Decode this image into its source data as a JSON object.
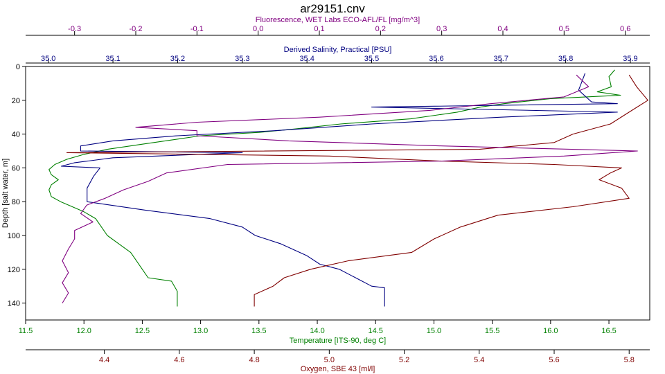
{
  "chart_data": {
    "type": "line",
    "title": "ar29151.cnv",
    "y_axis": {
      "label": "Depth [salt water, m]",
      "range": [
        0,
        150
      ],
      "ticks": [
        0,
        20,
        40,
        60,
        80,
        100,
        120,
        140
      ],
      "inverted": true
    },
    "x_axes": [
      {
        "id": "fluorescence",
        "label": "Fluorescence, WET Labs ECO-AFL/FL [mg/m^3]",
        "position": "top-outer",
        "color": "#800080",
        "range": [
          -0.38,
          0.64
        ],
        "ticks": [
          -0.3,
          -0.2,
          -0.1,
          0.0,
          0.1,
          0.2,
          0.3,
          0.4,
          0.5,
          0.6
        ],
        "tick_labels": [
          "-0.3",
          "-0.2",
          "-0.1",
          "0.0",
          "0.1",
          "0.2",
          "0.3",
          "0.4",
          "0.5",
          "0.6"
        ]
      },
      {
        "id": "salinity",
        "label": "Derived Salinity, Practical [PSU]",
        "position": "top-inner",
        "color": "#000080",
        "range": [
          34.965,
          35.93
        ],
        "ticks": [
          35.0,
          35.1,
          35.2,
          35.3,
          35.4,
          35.5,
          35.6,
          35.7,
          35.8,
          35.9
        ],
        "tick_labels": [
          "35.0",
          "35.1",
          "35.2",
          "35.3",
          "35.4",
          "35.5",
          "35.6",
          "35.7",
          "35.8",
          "35.9"
        ]
      },
      {
        "id": "temperature",
        "label": "Temperature [ITS-90, deg C]",
        "position": "bottom-inner",
        "color": "#008000",
        "range": [
          11.5,
          16.85
        ],
        "ticks": [
          11.5,
          12.0,
          12.5,
          13.0,
          13.5,
          14.0,
          14.5,
          15.0,
          15.5,
          16.0,
          16.5
        ],
        "tick_labels": [
          "11.5",
          "12.0",
          "12.5",
          "13.0",
          "13.5",
          "14.0",
          "14.5",
          "15.0",
          "15.5",
          "16.0",
          "16.5"
        ]
      },
      {
        "id": "oxygen",
        "label": "Oxygen, SBE 43 [ml/l]",
        "position": "bottom-outer",
        "color": "#800000",
        "range": [
          4.19,
          5.855
        ],
        "ticks": [
          4.4,
          4.6,
          4.8,
          5.0,
          5.2,
          5.4,
          5.6,
          5.8
        ],
        "tick_labels": [
          "4.4",
          "4.6",
          "4.8",
          "5.0",
          "5.2",
          "5.4",
          "5.6",
          "5.8"
        ]
      }
    ],
    "series": [
      {
        "axis": "temperature",
        "color": "#008000",
        "points": [
          [
            16.55,
            2
          ],
          [
            16.5,
            6
          ],
          [
            16.52,
            12
          ],
          [
            16.4,
            15
          ],
          [
            16.6,
            17
          ],
          [
            16.0,
            19
          ],
          [
            15.6,
            22
          ],
          [
            15.4,
            24
          ],
          [
            15.2,
            27
          ],
          [
            14.8,
            31
          ],
          [
            14.2,
            34
          ],
          [
            13.8,
            37
          ],
          [
            13.5,
            39
          ],
          [
            13.0,
            41
          ],
          [
            12.8,
            43
          ],
          [
            12.5,
            46
          ],
          [
            12.2,
            49
          ],
          [
            12.0,
            52
          ],
          [
            11.85,
            55
          ],
          [
            11.75,
            58
          ],
          [
            11.7,
            61
          ],
          [
            11.72,
            64
          ],
          [
            11.78,
            67
          ],
          [
            11.72,
            70
          ],
          [
            11.7,
            73
          ],
          [
            11.72,
            77
          ],
          [
            11.8,
            80
          ],
          [
            11.9,
            83
          ],
          [
            12.0,
            86
          ],
          [
            12.1,
            90
          ],
          [
            12.15,
            95
          ],
          [
            12.2,
            100
          ],
          [
            12.3,
            105
          ],
          [
            12.4,
            110
          ],
          [
            12.45,
            115
          ],
          [
            12.5,
            120
          ],
          [
            12.55,
            125
          ],
          [
            12.75,
            127
          ],
          [
            12.8,
            133
          ],
          [
            12.8,
            142
          ]
        ]
      },
      {
        "axis": "salinity",
        "color": "#000080",
        "points": [
          [
            35.83,
            4
          ],
          [
            35.82,
            14
          ],
          [
            35.84,
            21
          ],
          [
            35.88,
            22
          ],
          [
            35.5,
            24
          ],
          [
            35.88,
            27
          ],
          [
            35.7,
            30
          ],
          [
            35.5,
            34
          ],
          [
            35.35,
            38
          ],
          [
            35.2,
            41
          ],
          [
            35.1,
            44
          ],
          [
            35.05,
            47
          ],
          [
            35.05,
            50
          ],
          [
            35.3,
            51
          ],
          [
            35.1,
            54
          ],
          [
            35.04,
            57
          ],
          [
            35.02,
            59
          ],
          [
            35.08,
            60
          ],
          [
            35.07,
            65
          ],
          [
            35.06,
            72
          ],
          [
            35.06,
            80
          ],
          [
            35.15,
            85
          ],
          [
            35.25,
            90
          ],
          [
            35.3,
            95
          ],
          [
            35.32,
            100
          ],
          [
            35.36,
            105
          ],
          [
            35.4,
            112
          ],
          [
            35.42,
            117
          ],
          [
            35.45,
            120
          ],
          [
            35.48,
            126
          ],
          [
            35.5,
            130
          ],
          [
            35.52,
            131
          ],
          [
            35.52,
            142
          ]
        ]
      },
      {
        "axis": "oxygen",
        "color": "#800000",
        "points": [
          [
            5.8,
            5
          ],
          [
            5.82,
            12
          ],
          [
            5.85,
            20
          ],
          [
            5.8,
            27
          ],
          [
            5.75,
            34
          ],
          [
            5.65,
            40
          ],
          [
            5.6,
            45
          ],
          [
            5.4,
            49
          ],
          [
            4.3,
            51
          ],
          [
            5.0,
            53
          ],
          [
            5.3,
            56
          ],
          [
            5.6,
            58
          ],
          [
            5.78,
            60
          ],
          [
            5.75,
            63
          ],
          [
            5.72,
            67
          ],
          [
            5.78,
            72
          ],
          [
            5.8,
            78
          ],
          [
            5.65,
            83
          ],
          [
            5.45,
            88
          ],
          [
            5.35,
            95
          ],
          [
            5.28,
            102
          ],
          [
            5.22,
            110
          ],
          [
            5.05,
            115
          ],
          [
            4.95,
            120
          ],
          [
            4.88,
            125
          ],
          [
            4.85,
            130
          ],
          [
            4.8,
            135
          ],
          [
            4.8,
            142
          ]
        ]
      },
      {
        "axis": "fluorescence",
        "color": "#800080",
        "points": [
          [
            0.52,
            5
          ],
          [
            0.54,
            12
          ],
          [
            0.5,
            18
          ],
          [
            0.38,
            22
          ],
          [
            0.28,
            26
          ],
          [
            0.1,
            30
          ],
          [
            -0.1,
            33
          ],
          [
            -0.2,
            36
          ],
          [
            -0.1,
            38
          ],
          [
            -0.1,
            41
          ],
          [
            0.05,
            44
          ],
          [
            0.3,
            47
          ],
          [
            0.62,
            50
          ],
          [
            0.5,
            53
          ],
          [
            0.3,
            56
          ],
          [
            -0.05,
            58
          ],
          [
            -0.15,
            63
          ],
          [
            -0.18,
            68
          ],
          [
            -0.22,
            73
          ],
          [
            -0.25,
            78
          ],
          [
            -0.28,
            82
          ],
          [
            -0.29,
            87
          ],
          [
            -0.27,
            92
          ],
          [
            -0.3,
            97
          ],
          [
            -0.3,
            102
          ],
          [
            -0.31,
            108
          ],
          [
            -0.32,
            115
          ],
          [
            -0.31,
            122
          ],
          [
            -0.32,
            128
          ],
          [
            -0.31,
            134
          ],
          [
            -0.32,
            140
          ]
        ]
      }
    ]
  }
}
